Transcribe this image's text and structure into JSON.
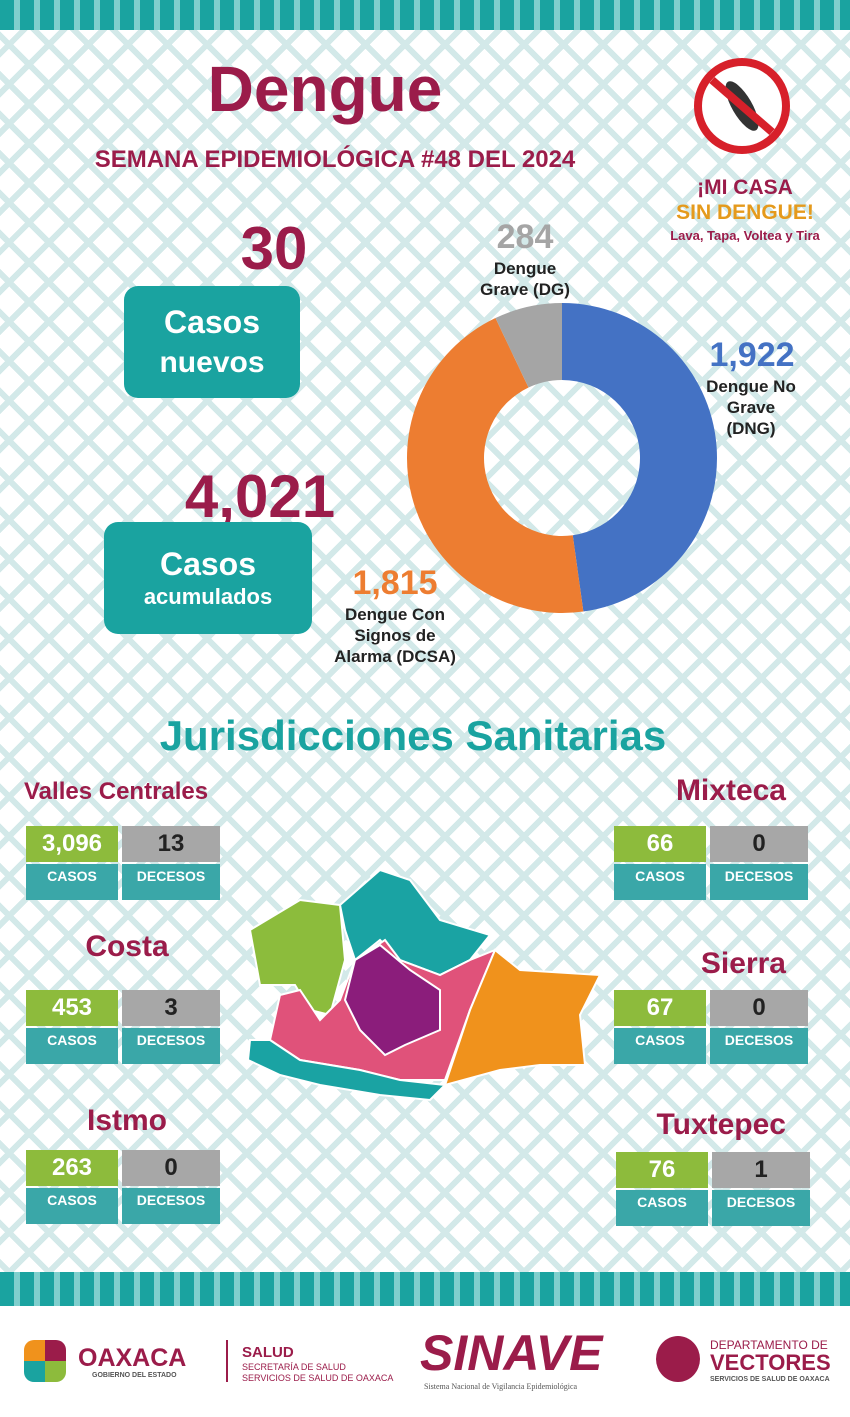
{
  "header": {
    "title": "Dengue",
    "subtitle": "SEMANA EPIDEMIOLÓGICA #48 DEL 2024"
  },
  "campaign": {
    "line1": "¡MI CASA",
    "line2": "SIN DENGUE!",
    "line3": "Lava, Tapa, Voltea y Tira"
  },
  "summary": [
    {
      "value": "30",
      "label1": "Casos",
      "label2": "nuevos"
    },
    {
      "value": "4,021",
      "label1": "Casos",
      "label2": "acumulados"
    }
  ],
  "chart_data": {
    "type": "donut",
    "categories": [
      "Dengue No Grave (DNG)",
      "Dengue Con Signos de Alarma (DCSA)",
      "Dengue Grave (DG)"
    ],
    "values": [
      1922,
      1815,
      284
    ],
    "value_labels": [
      "1,922",
      "1,815",
      "284"
    ],
    "colors": [
      "#4472c4",
      "#ed7d31",
      "#a5a5a5"
    ]
  },
  "jurisdictions": {
    "title": "Jurisdicciones Sanitarias",
    "cases_label": "CASOS",
    "deaths_label": "DECESOS",
    "items": [
      {
        "name": "Valles Centrales",
        "cases": "3,096",
        "deaths": "13"
      },
      {
        "name": "Costa",
        "cases": "453",
        "deaths": "3"
      },
      {
        "name": "Istmo",
        "cases": "263",
        "deaths": "0"
      },
      {
        "name": "Mixteca",
        "cases": "66",
        "deaths": "0"
      },
      {
        "name": "Sierra",
        "cases": "67",
        "deaths": "0"
      },
      {
        "name": "Tuxtepec",
        "cases": "76",
        "deaths": "1"
      }
    ]
  },
  "footer": {
    "oaxaca": "OAXACA",
    "oaxaca_sub": "GOBIERNO DEL ESTADO",
    "salud": "SALUD",
    "salud_sub1": "SECRETARÍA DE SALUD",
    "salud_sub2": "SERVICIOS DE SALUD DE OAXACA",
    "sinave": "SINAVE",
    "sinave_sub": "Sistema Nacional de Vigilancia Epidemiológica",
    "vect1": "DEPARTAMENTO DE",
    "vect2": "VECTORES",
    "vect3": "SERVICIOS DE SALUD DE OAXACA"
  }
}
